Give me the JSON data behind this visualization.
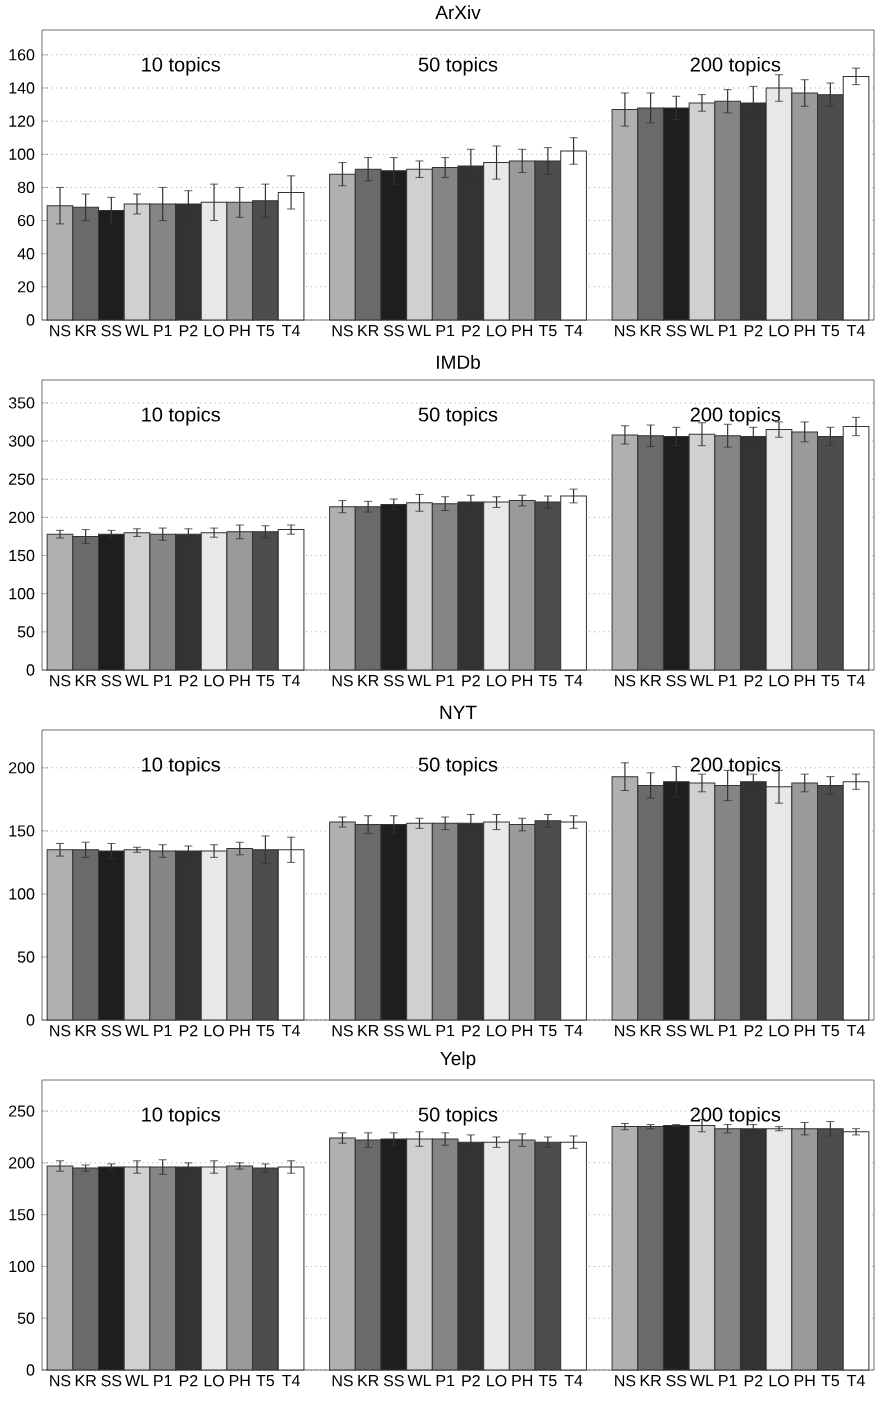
{
  "chart_data": [
    {
      "type": "bar",
      "title": "ArXiv",
      "categories": [
        "NS",
        "KR",
        "SS",
        "WL",
        "P1",
        "P2",
        "LO",
        "PH",
        "T5",
        "T4",
        null,
        "NS",
        "KR",
        "SS",
        "WL",
        "P1",
        "P2",
        "LO",
        "PH",
        "T5",
        "T4",
        null,
        "NS",
        "KR",
        "SS",
        "WL",
        "P1",
        "P2",
        "LO",
        "PH",
        "T5",
        "T4"
      ],
      "values": [
        69,
        68,
        66,
        70,
        70,
        70,
        71,
        71,
        72,
        77,
        null,
        88,
        91,
        90,
        91,
        92,
        93,
        95,
        96,
        96,
        102,
        null,
        127,
        128,
        128,
        131,
        132,
        131,
        140,
        137,
        136,
        147
      ],
      "errors": [
        11,
        8,
        8,
        6,
        10,
        8,
        11,
        9,
        10,
        10,
        null,
        7,
        7,
        8,
        5,
        6,
        10,
        10,
        7,
        8,
        8,
        null,
        10,
        9,
        7,
        5,
        7,
        10,
        8,
        8,
        7,
        5
      ],
      "colors": [
        "#b0b0b0",
        "#6a6a6a",
        "#1e1e1e",
        "#d0d0d0",
        "#858585",
        "#333333",
        "#e8e8e8",
        "#9a9a9a",
        "#4d4d4d",
        "#ffffff",
        null,
        "#b0b0b0",
        "#6a6a6a",
        "#1e1e1e",
        "#d0d0d0",
        "#858585",
        "#333333",
        "#e8e8e8",
        "#9a9a9a",
        "#4d4d4d",
        "#ffffff",
        null,
        "#b0b0b0",
        "#6a6a6a",
        "#1e1e1e",
        "#d0d0d0",
        "#858585",
        "#333333",
        "#e8e8e8",
        "#9a9a9a",
        "#4d4d4d",
        "#ffffff"
      ],
      "ylim": [
        0,
        175
      ],
      "yticks": [
        0,
        20,
        40,
        60,
        80,
        100,
        120,
        140,
        160
      ],
      "grid": "y",
      "annotations": [
        "10 topics",
        "50 topics",
        "200 topics"
      ]
    },
    {
      "type": "bar",
      "title": "IMDb",
      "categories": [
        "NS",
        "KR",
        "SS",
        "WL",
        "P1",
        "P2",
        "LO",
        "PH",
        "T5",
        "T4",
        null,
        "NS",
        "KR",
        "SS",
        "WL",
        "P1",
        "P2",
        "LO",
        "PH",
        "T5",
        "T4",
        null,
        "NS",
        "KR",
        "SS",
        "WL",
        "P1",
        "P2",
        "LO",
        "PH",
        "T5",
        "T4"
      ],
      "values": [
        178,
        175,
        178,
        180,
        178,
        178,
        180,
        181,
        181,
        184,
        null,
        214,
        214,
        217,
        219,
        218,
        220,
        220,
        222,
        220,
        228,
        null,
        308,
        307,
        306,
        309,
        307,
        306,
        315,
        312,
        306,
        319
      ],
      "errors": [
        5,
        9,
        5,
        5,
        8,
        7,
        6,
        9,
        8,
        6,
        null,
        8,
        7,
        7,
        11,
        9,
        9,
        7,
        7,
        8,
        9,
        null,
        12,
        14,
        12,
        15,
        15,
        12,
        10,
        13,
        12,
        12
      ],
      "colors": [
        "#b0b0b0",
        "#6a6a6a",
        "#1e1e1e",
        "#d0d0d0",
        "#858585",
        "#333333",
        "#e8e8e8",
        "#9a9a9a",
        "#4d4d4d",
        "#ffffff",
        null,
        "#b0b0b0",
        "#6a6a6a",
        "#1e1e1e",
        "#d0d0d0",
        "#858585",
        "#333333",
        "#e8e8e8",
        "#9a9a9a",
        "#4d4d4d",
        "#ffffff",
        null,
        "#b0b0b0",
        "#6a6a6a",
        "#1e1e1e",
        "#d0d0d0",
        "#858585",
        "#333333",
        "#e8e8e8",
        "#9a9a9a",
        "#4d4d4d",
        "#ffffff"
      ],
      "ylim": [
        0,
        380
      ],
      "yticks": [
        0,
        50,
        100,
        150,
        200,
        250,
        300,
        350
      ],
      "grid": "y",
      "annotations": [
        "10 topics",
        "50 topics",
        "200 topics"
      ]
    },
    {
      "type": "bar",
      "title": "NYT",
      "categories": [
        "NS",
        "KR",
        "SS",
        "WL",
        "P1",
        "P2",
        "LO",
        "PH",
        "T5",
        "T4",
        null,
        "NS",
        "KR",
        "SS",
        "WL",
        "P1",
        "P2",
        "LO",
        "PH",
        "T5",
        "T4",
        null,
        "NS",
        "KR",
        "SS",
        "WL",
        "P1",
        "P2",
        "LO",
        "PH",
        "T5",
        "T4"
      ],
      "values": [
        135,
        135,
        134,
        135,
        134,
        134,
        134,
        136,
        135,
        135,
        null,
        157,
        155,
        155,
        156,
        156,
        156,
        157,
        155,
        158,
        157,
        null,
        193,
        186,
        189,
        188,
        186,
        189,
        185,
        188,
        186,
        189
      ],
      "errors": [
        5,
        6,
        6,
        2,
        5,
        4,
        5,
        5,
        11,
        10,
        null,
        4,
        7,
        7,
        4,
        5,
        7,
        6,
        5,
        5,
        5,
        null,
        11,
        10,
        12,
        7,
        12,
        6,
        13,
        7,
        7,
        6
      ],
      "colors": [
        "#b0b0b0",
        "#6a6a6a",
        "#1e1e1e",
        "#d0d0d0",
        "#858585",
        "#333333",
        "#e8e8e8",
        "#9a9a9a",
        "#4d4d4d",
        "#ffffff",
        null,
        "#b0b0b0",
        "#6a6a6a",
        "#1e1e1e",
        "#d0d0d0",
        "#858585",
        "#333333",
        "#e8e8e8",
        "#9a9a9a",
        "#4d4d4d",
        "#ffffff",
        null,
        "#b0b0b0",
        "#6a6a6a",
        "#1e1e1e",
        "#d0d0d0",
        "#858585",
        "#333333",
        "#e8e8e8",
        "#9a9a9a",
        "#4d4d4d",
        "#ffffff"
      ],
      "ylim": [
        0,
        230
      ],
      "yticks": [
        0,
        50,
        100,
        150,
        200
      ],
      "grid": "y",
      "annotations": [
        "10 topics",
        "50 topics",
        "200 topics"
      ]
    },
    {
      "type": "bar",
      "title": "Yelp",
      "categories": [
        "NS",
        "KR",
        "SS",
        "WL",
        "P1",
        "P2",
        "LO",
        "PH",
        "T5",
        "T4",
        null,
        "NS",
        "KR",
        "SS",
        "WL",
        "P1",
        "P2",
        "LO",
        "PH",
        "T5",
        "T4",
        null,
        "NS",
        "KR",
        "SS",
        "WL",
        "P1",
        "P2",
        "LO",
        "PH",
        "T5",
        "T4"
      ],
      "values": [
        197,
        195,
        196,
        196,
        196,
        196,
        196,
        197,
        195,
        196,
        null,
        224,
        222,
        223,
        223,
        223,
        220,
        220,
        222,
        220,
        220,
        null,
        235,
        235,
        236,
        236,
        233,
        233,
        233,
        233,
        233,
        230
      ],
      "errors": [
        5,
        3,
        3,
        6,
        7,
        4,
        6,
        3,
        4,
        6,
        null,
        5,
        7,
        6,
        7,
        6,
        7,
        5,
        6,
        5,
        6,
        null,
        3,
        2,
        1,
        6,
        4,
        4,
        2,
        6,
        7,
        3
      ],
      "colors": [
        "#b0b0b0",
        "#6a6a6a",
        "#1e1e1e",
        "#d0d0d0",
        "#858585",
        "#333333",
        "#e8e8e8",
        "#9a9a9a",
        "#4d4d4d",
        "#ffffff",
        null,
        "#b0b0b0",
        "#6a6a6a",
        "#1e1e1e",
        "#d0d0d0",
        "#858585",
        "#333333",
        "#e8e8e8",
        "#9a9a9a",
        "#4d4d4d",
        "#ffffff",
        null,
        "#b0b0b0",
        "#6a6a6a",
        "#1e1e1e",
        "#d0d0d0",
        "#858585",
        "#333333",
        "#e8e8e8",
        "#9a9a9a",
        "#4d4d4d",
        "#ffffff"
      ],
      "ylim": [
        0,
        280
      ],
      "yticks": [
        0,
        50,
        100,
        150,
        200,
        250
      ],
      "grid": "y",
      "annotations": [
        "10 topics",
        "50 topics",
        "200 topics"
      ]
    }
  ]
}
